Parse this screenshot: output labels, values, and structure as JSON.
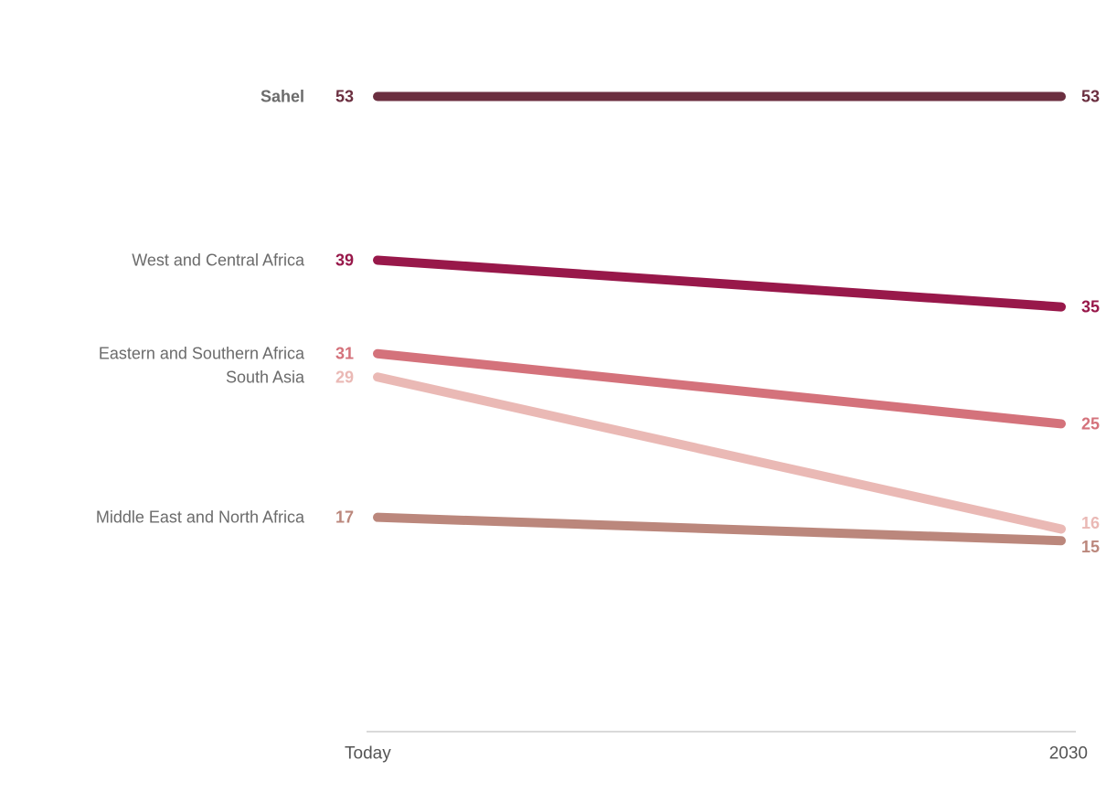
{
  "chart_data": {
    "type": "line",
    "x": [
      "Today",
      "2030"
    ],
    "ylim": [
      0,
      60
    ],
    "grid": false,
    "series": [
      {
        "name": "Sahel",
        "values": [
          53,
          53
        ],
        "color": "#6b2f40",
        "bold_label": true
      },
      {
        "name": "West and Central Africa",
        "values": [
          39,
          35
        ],
        "color": "#98184a",
        "bold_label": false
      },
      {
        "name": "Eastern and Southern Africa",
        "values": [
          31,
          25
        ],
        "color": "#d4727b",
        "bold_label": false
      },
      {
        "name": "South Asia",
        "values": [
          29,
          16
        ],
        "color": "#eab9b5",
        "bold_label": false
      },
      {
        "name": "Middle East and North Africa",
        "values": [
          17,
          15
        ],
        "color": "#bb877c",
        "bold_label": false
      }
    ]
  }
}
